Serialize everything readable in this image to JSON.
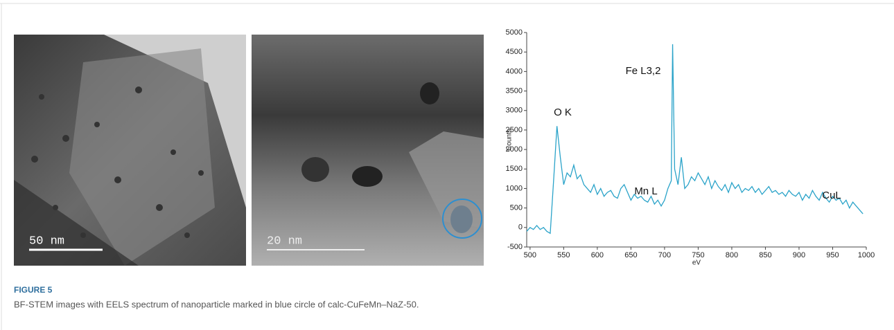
{
  "figure": {
    "label": "FIGURE 5",
    "caption": "BF-STEM images with EELS spectrum of nanoparticle marked in blue circle of calc-CuFeMn–NaZ-50.",
    "images": [
      {
        "scale_bar": "50 nm"
      },
      {
        "scale_bar": "20 nm"
      }
    ]
  },
  "chart_data": {
    "type": "line",
    "y_label": "Counts",
    "x_label": "eV",
    "annotations": [
      "O K",
      "Fe L3,2",
      "Mn L",
      "CuL"
    ],
    "x": [
      495,
      500,
      505,
      510,
      515,
      520,
      525,
      530,
      535,
      540,
      545,
      550,
      555,
      560,
      565,
      570,
      575,
      580,
      585,
      590,
      595,
      600,
      605,
      610,
      615,
      620,
      625,
      630,
      635,
      640,
      645,
      650,
      655,
      660,
      665,
      670,
      675,
      680,
      685,
      690,
      695,
      700,
      705,
      710,
      712,
      715,
      720,
      725,
      730,
      735,
      740,
      745,
      750,
      755,
      760,
      765,
      770,
      775,
      780,
      785,
      790,
      795,
      800,
      805,
      810,
      815,
      820,
      825,
      830,
      835,
      840,
      845,
      850,
      855,
      860,
      865,
      870,
      875,
      880,
      885,
      890,
      895,
      900,
      905,
      910,
      915,
      920,
      925,
      930,
      935,
      940,
      945,
      950,
      955,
      960,
      965,
      970,
      975,
      980,
      985,
      990,
      995
    ],
    "series": [
      {
        "color": "#2aa3c9",
        "values": [
          -100,
          0,
          -50,
          50,
          -50,
          0,
          -100,
          -150,
          1200,
          2600,
          1800,
          1100,
          1400,
          1300,
          1600,
          1250,
          1350,
          1100,
          1000,
          900,
          1100,
          850,
          1000,
          800,
          900,
          950,
          800,
          750,
          1000,
          1100,
          900,
          700,
          850,
          750,
          800,
          700,
          650,
          800,
          600,
          700,
          550,
          700,
          1000,
          1200,
          4700,
          1500,
          1100,
          1800,
          1000,
          1100,
          1300,
          1200,
          1400,
          1250,
          1100,
          1300,
          1000,
          1200,
          1050,
          950,
          1100,
          900,
          1150,
          1000,
          1100,
          900,
          1000,
          950,
          1050,
          900,
          1000,
          850,
          950,
          1050,
          900,
          950,
          850,
          900,
          800,
          950,
          850,
          800,
          900,
          700,
          850,
          750,
          950,
          800,
          700,
          900,
          750,
          650,
          800,
          700,
          750,
          600,
          700,
          500,
          650,
          550,
          450,
          350
        ]
      }
    ],
    "xlim": [
      495,
      1000
    ],
    "xticks": [
      500,
      550,
      600,
      650,
      700,
      750,
      800,
      850,
      900,
      950,
      1000
    ],
    "ylim": [
      -500,
      5000
    ],
    "yticks": [
      -500,
      0,
      500,
      1000,
      1500,
      2000,
      2500,
      3000,
      3500,
      4000,
      4500,
      5000
    ]
  }
}
